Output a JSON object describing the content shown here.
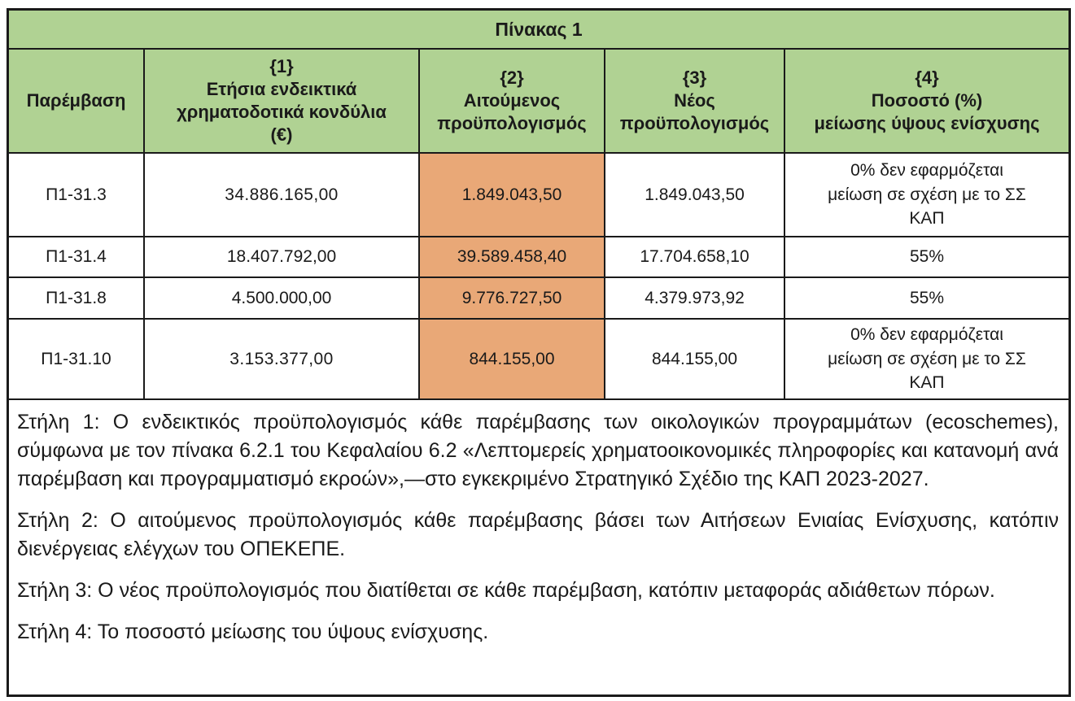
{
  "colors": {
    "header_green": "#b0d293",
    "highlight_orange": "#e9a877"
  },
  "table": {
    "title": "Πίνακας 1",
    "columns": [
      {
        "tag": "",
        "label": "Παρέμβαση"
      },
      {
        "tag": "{1}",
        "label": "Ετήσια ενδεικτικά\nχρηματοδοτικά κονδύλια\n(€)"
      },
      {
        "tag": "{2}",
        "label": "Αιτούμενος\nπροϋπολογισμός"
      },
      {
        "tag": "{3}",
        "label": "Νέος\nπροϋπολογισμός"
      },
      {
        "tag": "{4}",
        "label": "Ποσοστό (%)\nμείωσης ύψους ενίσχυσης"
      }
    ],
    "rows": [
      {
        "intervention": "Π1-31.3",
        "annual_indicative": "34.886.165,00",
        "requested_budget": "1.849.043,50",
        "new_budget": "1.849.043,50",
        "reduction_pct": "0% δεν εφαρμόζεται\nμείωση σε σχέση με το ΣΣ\nΚΑΠ"
      },
      {
        "intervention": "Π1-31.4",
        "annual_indicative": "18.407.792,00",
        "requested_budget": "39.589.458,40",
        "new_budget": "17.704.658,10",
        "reduction_pct": "55%"
      },
      {
        "intervention": "Π1-31.8",
        "annual_indicative": "4.500.000,00",
        "requested_budget": "9.776.727,50",
        "new_budget": "4.379.973,92",
        "reduction_pct": "55%"
      },
      {
        "intervention": "Π1-31.10",
        "annual_indicative": "3.153.377,00",
        "requested_budget": "844.155,00",
        "new_budget": "844.155,00",
        "reduction_pct": "0% δεν εφαρμόζεται\nμείωση σε σχέση με το ΣΣ\nΚΑΠ"
      }
    ],
    "footnotes": [
      "Στήλη 1: Ο ενδεικτικός προϋπολογισμός κάθε παρέμβασης των οικολογικών προγραμμάτων (ecoschemes), σύμφωνα με τον πίνακα 6.2.1 του Κεφαλαίου 6.2 «Λεπτομερείς χρηματοοικονομικές πληροφορίες και κατανομή ανά παρέμβαση και προγραμματισμό εκροών»,—στο εγκεκριμένο Στρατηγικό Σχέδιο της ΚΑΠ 2023-2027.",
      "Στήλη 2: Ο αιτούμενος προϋπολογισμός κάθε παρέμβασης βάσει των Αιτήσεων Ενιαίας Ενίσχυσης, κατόπιν διενέργειας ελέγχων του ΟΠΕΚΕΠΕ.",
      "Στήλη 3: Ο νέος προϋπολογισμός που διατίθεται σε κάθε παρέμβαση, κατόπιν μεταφοράς αδιάθετων πόρων.",
      "Στήλη 4: Το ποσοστό μείωσης του ύψους ενίσχυσης."
    ]
  }
}
